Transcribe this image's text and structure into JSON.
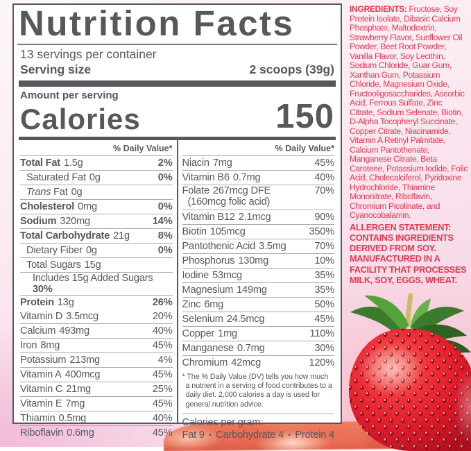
{
  "panel": {
    "title": "Nutrition Facts",
    "servings_per_container": "13 servings per container",
    "serving_size_label": "Serving size",
    "serving_size_value": "2 scoops (39g)",
    "amount_per_serving": "Amount per serving",
    "calories_label": "Calories",
    "calories_value": "150",
    "daily_value_header": "% Daily Value*",
    "left_main": [
      {
        "name": "Total Fat",
        "amount": "1.5g",
        "dv": "2%",
        "bold": true,
        "indent": 0
      },
      {
        "name": "Saturated Fat",
        "amount": "0g",
        "dv": "0%",
        "bold": false,
        "indent": 1
      },
      {
        "name_italic": "Trans",
        "name": "Fat",
        "amount": "0g",
        "dv": "",
        "bold": false,
        "indent": 1
      },
      {
        "name": "Cholesterol",
        "amount": "0mg",
        "dv": "0%",
        "bold": true,
        "indent": 0
      },
      {
        "name": "Sodium",
        "amount": "320mg",
        "dv": "14%",
        "bold": true,
        "indent": 0
      },
      {
        "name": "Total Carbohydrate",
        "amount": "21g",
        "dv": "8%",
        "bold": true,
        "indent": 0
      },
      {
        "name": "Dietary Fiber",
        "amount": "0g",
        "dv": "0%",
        "bold": false,
        "indent": 1
      },
      {
        "name": "Total Sugars",
        "amount": "15g",
        "dv": "",
        "bold": false,
        "indent": 1
      },
      {
        "name": "Includes 15g Added Sugars",
        "amount": "",
        "dv": "30%",
        "bold": false,
        "indent": 2
      },
      {
        "name": "Protein",
        "amount": "13g",
        "dv": "26%",
        "bold": true,
        "indent": 0
      }
    ],
    "left_vitamins": [
      {
        "name": "Vitamin D",
        "amount": "3.5mcg",
        "dv": "20%"
      },
      {
        "name": "Calcium",
        "amount": "493mg",
        "dv": "40%"
      },
      {
        "name": "Iron",
        "amount": "8mg",
        "dv": "45%"
      },
      {
        "name": "Potassium",
        "amount": "213mg",
        "dv": "4%"
      },
      {
        "name": "Vitamin A",
        "amount": "400mcg",
        "dv": "45%"
      },
      {
        "name": "Vitamin C",
        "amount": "21mg",
        "dv": "25%"
      },
      {
        "name": "Vitamin E",
        "amount": "7mg",
        "dv": "45%"
      },
      {
        "name": "Thiamin",
        "amount": "0.5mg",
        "dv": "40%"
      },
      {
        "name": "Riboflavin",
        "amount": "0.6mg",
        "dv": "45%"
      }
    ],
    "right_rows": [
      {
        "name": "Niacin",
        "amount": "7mg",
        "dv": "45%"
      },
      {
        "name": "Vitamin B6",
        "amount": "0.7mg",
        "dv": "40%"
      },
      {
        "name": "Folate",
        "amount": "267mcg DFE",
        "dv": "70%",
        "sub": "(160mcg folic acid)"
      },
      {
        "name": "Vitamin B12",
        "amount": "2.1mcg",
        "dv": "90%"
      },
      {
        "name": "Biotin",
        "amount": "105mcg",
        "dv": "350%"
      },
      {
        "name": "Pantothenic Acid",
        "amount": "3.5mg",
        "dv": "70%"
      },
      {
        "name": "Phosphorus",
        "amount": "130mg",
        "dv": "10%"
      },
      {
        "name": "Iodine",
        "amount": "53mcg",
        "dv": "35%"
      },
      {
        "name": "Magnesium",
        "amount": "149mg",
        "dv": "35%"
      },
      {
        "name": "Zinc",
        "amount": "6mg",
        "dv": "50%"
      },
      {
        "name": "Selenium",
        "amount": "24.5mcg",
        "dv": "45%"
      },
      {
        "name": "Copper",
        "amount": "1mg",
        "dv": "110%"
      },
      {
        "name": "Manganese",
        "amount": "0.7mg",
        "dv": "30%"
      },
      {
        "name": "Chromium",
        "amount": "42mcg",
        "dv": "120%"
      }
    ],
    "footnote": "* The % Daily Value (DV) tells you how much a nutrient in a serving of food contributes to a daily diet. 2,000 calories a day is used for general nutrition advice.",
    "calories_per_gram_label": "Calories per gram:",
    "calories_per_gram_items": [
      "Fat 9",
      "Carbohydrate 4",
      "Protein 4"
    ],
    "bullet": "•"
  },
  "ingredients": {
    "label": "INGREDIENTS:",
    "text": "Fructose, Soy Protein Isolate, Dibasic Calcium Phosphate, Maltodextrin, Strawberry Flavor, Sunflower Oil Powder, Beet Root Powder, Vanilla Flavor, Soy Lecithin, Sodium Chloride, Guar Gum, Xanthan Gum, Potassium Chloride, Magnesium Oxide, Fructooligosaccharides, Ascorbic Acid, Ferrous Sulfate, Zinc Citrate, Sodium Selenate, Biotin, D-Alpha Tocopheryl Succinate, Copper Citrate, Niacinamide, Vitamin A Retinyl Palmitate, Calcium Pantothenate, Manganese Citrate, Beta Carotene, Potassium Iodide, Folic Acid, Cholecalciferol, Pyridoxine Hydrochloride, Thiamine Mononitrate, Riboflavin, Chromium Picolinate, and Cyanocobalamin."
  },
  "allergen": {
    "text": "ALLERGEN STATEMENT: CONTAINS INGREDIENTS DERIVED FROM SOY. MANUFACTURED IN A FACILITY THAT PROCESSES MILK, SOY, EGGS, WHEAT."
  },
  "colors": {
    "label_text": "#56585c",
    "hairline": "#a8aaad",
    "red_text": "#e2394f",
    "panel_bg": "#ffffff",
    "page_pink_light": "#fdf6f9",
    "page_pink_deep": "#f5cce1",
    "strawberry_red": "#e01b2b",
    "leaf_green": "#4c8c34"
  }
}
